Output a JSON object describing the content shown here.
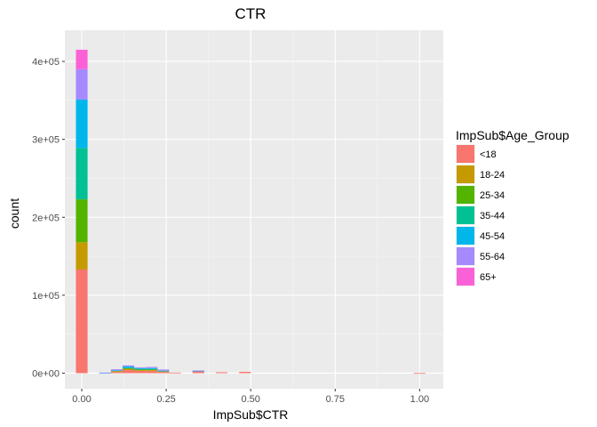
{
  "chart_data": {
    "type": "bar",
    "stacked": true,
    "title": "CTR",
    "xlabel": "ImpSub$CTR",
    "ylabel": "count",
    "xlim": [
      -0.05,
      1.07
    ],
    "ylim": [
      -20000,
      440000
    ],
    "x_ticks": [
      {
        "value": 0.0,
        "label": "0.00"
      },
      {
        "value": 0.25,
        "label": "0.25"
      },
      {
        "value": 0.5,
        "label": "0.50"
      },
      {
        "value": 0.75,
        "label": "0.75"
      },
      {
        "value": 1.0,
        "label": "1.00"
      }
    ],
    "y_ticks": [
      {
        "value": 0,
        "label": "0e+00"
      },
      {
        "value": 100000,
        "label": "1e+05"
      },
      {
        "value": 200000,
        "label": "2e+05"
      },
      {
        "value": 300000,
        "label": "3e+05"
      },
      {
        "value": 400000,
        "label": "4e+05"
      }
    ],
    "grid": true,
    "legend": {
      "title": "ImpSub$Age_Group",
      "position": "right"
    },
    "bin_width": 0.0345,
    "bins": [
      0.0,
      0.069,
      0.1035,
      0.138,
      0.1725,
      0.207,
      0.2415,
      0.276,
      0.345,
      0.414,
      0.483,
      1.0
    ],
    "series": [
      {
        "name": "<18",
        "color": "#F8766D",
        "values": [
          133000,
          0,
          1500,
          4000,
          3000,
          3000,
          1500,
          700,
          2500,
          1200,
          1700,
          150
        ]
      },
      {
        "name": "18-24",
        "color": "#C49A00",
        "values": [
          35000,
          0,
          1200,
          2000,
          1500,
          1500,
          1200,
          0,
          0,
          0,
          0,
          0
        ]
      },
      {
        "name": "25-34",
        "color": "#53B400",
        "values": [
          55000,
          0,
          0,
          500,
          500,
          500,
          0,
          0,
          0,
          0,
          0,
          0
        ]
      },
      {
        "name": "35-44",
        "color": "#00C094",
        "values": [
          66000,
          0,
          0,
          500,
          500,
          500,
          0,
          0,
          0,
          0,
          0,
          0
        ]
      },
      {
        "name": "45-54",
        "color": "#00B6EB",
        "values": [
          62000,
          500,
          1000,
          1500,
          1000,
          1000,
          500,
          0,
          500,
          0,
          0,
          0
        ]
      },
      {
        "name": "55-64",
        "color": "#A58AFF",
        "values": [
          39000,
          300,
          1300,
          1500,
          1000,
          1500,
          1500,
          0,
          500,
          0,
          0,
          0
        ]
      },
      {
        "name": "65+",
        "color": "#FB61D7",
        "values": [
          25000,
          0,
          0,
          0,
          0,
          0,
          0,
          0,
          0,
          0,
          0,
          0
        ]
      }
    ]
  }
}
